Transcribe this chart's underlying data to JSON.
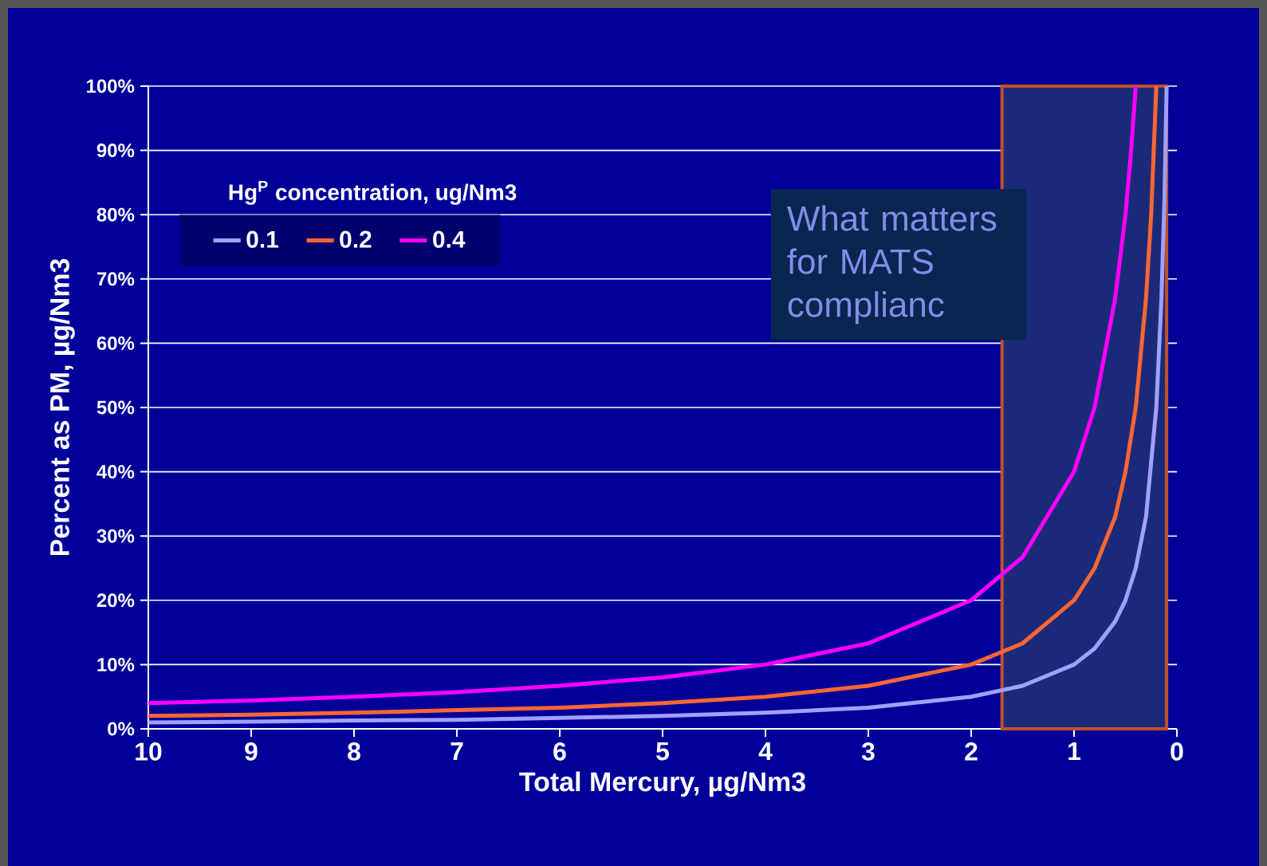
{
  "chart_data": {
    "type": "line",
    "xlabel": "Total Mercury, µg/Nm3",
    "ylabel": "Percent as PM, µg/Nm3",
    "legend_title": "Hg$^{P}$ concentration, ug/Nm3",
    "series": [
      {
        "name": "0.1",
        "color": "#a0a0ff",
        "x": [
          10,
          9,
          8,
          7,
          6,
          5,
          4,
          3,
          2,
          1.5,
          1,
          0.8,
          0.6,
          0.5,
          0.4,
          0.3,
          0.2,
          0.15,
          0.12,
          0.1
        ],
        "values": [
          1,
          1.1,
          1.3,
          1.4,
          1.7,
          2,
          2.5,
          3.3,
          5,
          6.7,
          10,
          12.5,
          16.7,
          20,
          25,
          33,
          50,
          67,
          83,
          100
        ]
      },
      {
        "name": "0.2",
        "color": "#ff6633",
        "x": [
          10,
          9,
          8,
          7,
          6,
          5,
          4,
          3,
          2,
          1.5,
          1,
          0.8,
          0.6,
          0.5,
          0.4,
          0.3,
          0.25,
          0.2
        ],
        "values": [
          2,
          2.2,
          2.5,
          2.9,
          3.3,
          4,
          5,
          6.7,
          10,
          13.3,
          20,
          25,
          33,
          40,
          50,
          67,
          80,
          100
        ]
      },
      {
        "name": "0.4",
        "color": "#ff00ff",
        "x": [
          10,
          9,
          8,
          7,
          6,
          5,
          4,
          3,
          2,
          1.5,
          1,
          0.8,
          0.6,
          0.5,
          0.45,
          0.4
        ],
        "values": [
          4,
          4.4,
          5,
          5.7,
          6.7,
          8,
          10,
          13.3,
          20,
          26.7,
          40,
          50,
          67,
          80,
          89,
          100
        ]
      }
    ],
    "xlim": [
      10,
      0
    ],
    "xticks": [
      10,
      9,
      8,
      7,
      6,
      5,
      4,
      3,
      2,
      1,
      0
    ],
    "ylim": [
      0,
      100
    ],
    "yticks": [
      {
        "value": 0,
        "label": "0%"
      },
      {
        "value": 10,
        "label": "10%"
      },
      {
        "value": 20,
        "label": "20%"
      },
      {
        "value": 30,
        "label": "30%"
      },
      {
        "value": 40,
        "label": "40%"
      },
      {
        "value": 50,
        "label": "50%"
      },
      {
        "value": 60,
        "label": "60%"
      },
      {
        "value": 70,
        "label": "70%"
      },
      {
        "value": 80,
        "label": "80%"
      },
      {
        "value": 90,
        "label": "90%"
      },
      {
        "value": 100,
        "label": "100%"
      }
    ],
    "grid": "y",
    "legend": "top left",
    "bands": [
      {
        "axis": "x",
        "from": 1.7,
        "to": 0.1,
        "color": "#c0502a"
      }
    ],
    "annotations": [
      "What matters for MATS complianc"
    ]
  }
}
